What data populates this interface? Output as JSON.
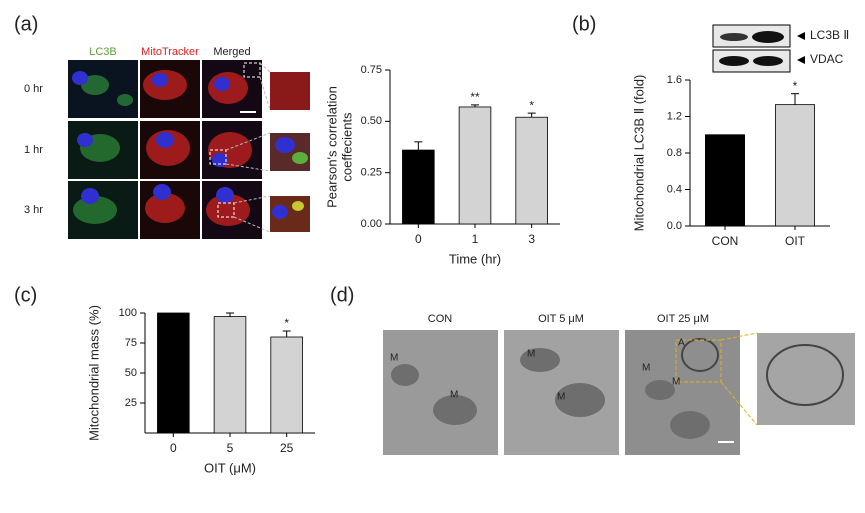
{
  "panel_labels": [
    "(a)",
    "(b)",
    "(c)",
    "(d)"
  ],
  "microscopy": {
    "channels": [
      "LC3B",
      "MitoTracker",
      "Merged"
    ],
    "times": [
      "0 hr",
      "1 hr",
      "3 hr"
    ]
  },
  "blot": {
    "bands": [
      "LC3B Ⅱ",
      "VDAC"
    ]
  },
  "em": {
    "conditions": [
      "CON",
      "OIT 5 μM",
      "OIT 25 μM"
    ],
    "marks": [
      "M",
      "M",
      "M",
      "M",
      "M",
      "M",
      "A"
    ]
  },
  "chart_data": [
    {
      "type": "bar",
      "categories": [
        "0",
        "1",
        "3"
      ],
      "values": [
        0.36,
        0.57,
        0.52
      ],
      "errors": [
        0.04,
        0.01,
        0.02
      ],
      "annotations": [
        null,
        "**",
        "*"
      ],
      "colors": [
        "#000000",
        "#d3d3d3",
        "#d3d3d3"
      ],
      "xlabel": "Time (hr)",
      "ylabel": [
        "Pearson's correlation",
        "coeffecients"
      ],
      "ylim": [
        0,
        0.75
      ],
      "yticks": [
        {
          "value": 0,
          "label": "0.00"
        },
        0.25,
        {
          "value": 0.5,
          "label": "0.50"
        },
        0.75
      ]
    },
    {
      "type": "bar",
      "categories": [
        "CON",
        "OIT"
      ],
      "values": [
        1.0,
        1.33
      ],
      "errors": [
        null,
        0.12
      ],
      "annotations": [
        null,
        "*"
      ],
      "colors": [
        "#000000",
        "#d3d3d3"
      ],
      "ylabel": [
        "Mitochondrial  LC3B Ⅱ (fold)"
      ],
      "ylim": [
        0,
        1.6
      ],
      "yticks": [
        {
          "value": 0,
          "label": "0.0"
        },
        0.4,
        0.8,
        1.2,
        1.6
      ]
    },
    {
      "type": "bar",
      "categories": [
        "0",
        "5",
        "25"
      ],
      "values": [
        100,
        97,
        80
      ],
      "errors": [
        null,
        3,
        5
      ],
      "annotations": [
        null,
        null,
        "*"
      ],
      "colors": [
        "#000000",
        "#d3d3d3",
        "#d3d3d3"
      ],
      "xlabel": "OIT (μM)",
      "ylabel": [
        "Mitochondrial mass (%)"
      ],
      "ylim": [
        0,
        100
      ],
      "yticks": [
        25,
        50,
        75,
        100
      ]
    }
  ]
}
